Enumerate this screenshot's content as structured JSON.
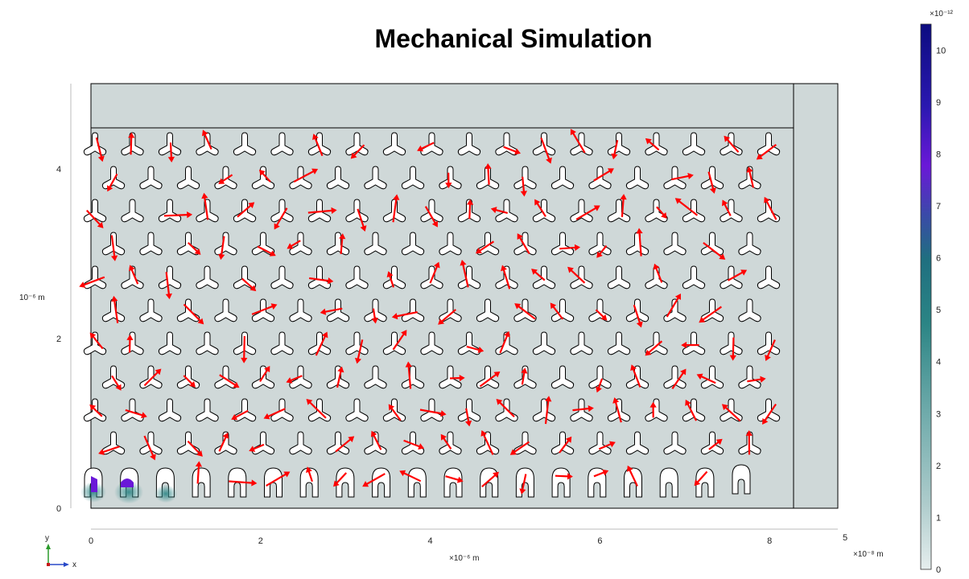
{
  "title": "Mechanical Simulation",
  "chart_data": {
    "type": "vector-field",
    "plot_title": "Mechanical Simulation",
    "x_axis": {
      "ticks": [
        "0",
        "2",
        "4",
        "6",
        "8"
      ],
      "tick_values_um": [
        0,
        2,
        4,
        6,
        8
      ],
      "unit_label": "×10⁻⁶ m",
      "range_um": [
        0,
        8.8
      ]
    },
    "secondary_x": {
      "tick": "5",
      "unit_label": "×10⁻⁸ m"
    },
    "y_axis": {
      "ticks": [
        "0",
        "2",
        "4"
      ],
      "tick_values_um": [
        0,
        2,
        4
      ],
      "unit_label": "10⁻⁶ m",
      "range_um": [
        0,
        5
      ]
    },
    "colorbar": {
      "exponent_label": "×10⁻¹²",
      "ticks": [
        "0",
        "1",
        "2",
        "3",
        "4",
        "5",
        "6",
        "7",
        "8",
        "9",
        "10"
      ],
      "range": [
        0,
        10.5
      ],
      "colors": [
        "#e6eeee",
        "#aecccc",
        "#6aa8a8",
        "#2b8585",
        "#1f6f80",
        "#3a4aa8",
        "#6a18d8",
        "#2a18b0",
        "#0c0c80"
      ]
    },
    "colors": {
      "arrow": "#ff0000",
      "background": "#cfd8d8",
      "outline": "#000000"
    },
    "grid": false,
    "legend": "colorbar-right",
    "axes_indicator": {
      "x": "x",
      "y": "y"
    }
  }
}
